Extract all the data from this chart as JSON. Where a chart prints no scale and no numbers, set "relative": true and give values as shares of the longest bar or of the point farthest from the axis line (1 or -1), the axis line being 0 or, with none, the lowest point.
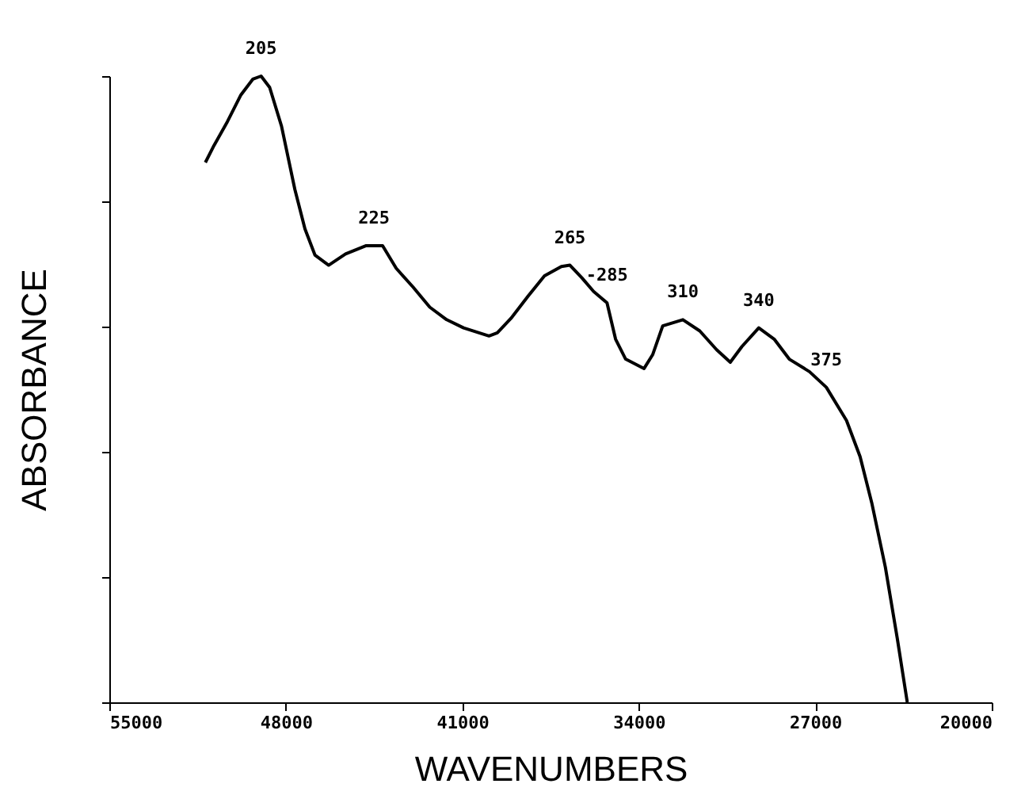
{
  "chart_data": {
    "type": "line",
    "xlabel": "WAVENUMBERS",
    "ylabel": "ABSORBANCE",
    "relative": true,
    "grid": false,
    "marker": "none",
    "line_style": "solid",
    "xlim": [
      55000,
      20000
    ],
    "xticks": [
      55000,
      48000,
      41000,
      34000,
      27000,
      20000
    ],
    "x": [
      51190,
      50850,
      50320,
      49780,
      49310,
      48980,
      48640,
      48170,
      47640,
      47240,
      46840,
      46300,
      45630,
      44830,
      44160,
      43620,
      42950,
      42290,
      41620,
      40950,
      39940,
      39610,
      39070,
      38400,
      37740,
      37070,
      36730,
      36260,
      35790,
      35260,
      34920,
      34520,
      33790,
      33450,
      33050,
      32250,
      31580,
      30910,
      30370,
      29910,
      29240,
      28630,
      28030,
      27230,
      26560,
      25760,
      25220,
      24750,
      24220,
      23750,
      23350
    ],
    "series": [
      {
        "color": "#000000",
        "values": [
          0.862,
          0.889,
          0.927,
          0.97,
          0.995,
          1.0,
          0.982,
          0.92,
          0.819,
          0.756,
          0.714,
          0.698,
          0.716,
          0.729,
          0.729,
          0.693,
          0.663,
          0.631,
          0.611,
          0.598,
          0.585,
          0.59,
          0.613,
          0.648,
          0.681,
          0.696,
          0.698,
          0.678,
          0.656,
          0.638,
          0.58,
          0.548,
          0.533,
          0.555,
          0.601,
          0.611,
          0.593,
          0.563,
          0.543,
          0.568,
          0.598,
          0.58,
          0.548,
          0.528,
          0.503,
          0.45,
          0.392,
          0.317,
          0.216,
          0.103,
          0.0
        ]
      }
    ],
    "annotations": [
      {
        "text": "205",
        "x": 48980,
        "y": 1.0
      },
      {
        "text": "225",
        "x": 44500,
        "y": 0.729
      },
      {
        "text": "265",
        "x": 36730,
        "y": 0.698
      },
      {
        "text": "-285",
        "x": 35260,
        "y": 0.638
      },
      {
        "text": "310",
        "x": 32250,
        "y": 0.611
      },
      {
        "text": "340",
        "x": 29240,
        "y": 0.598
      },
      {
        "text": "375",
        "x": 26560,
        "y": 0.503
      }
    ]
  }
}
